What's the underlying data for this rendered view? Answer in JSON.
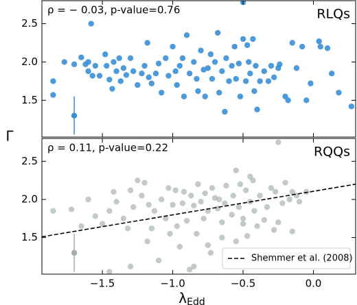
{
  "chart_data": [
    {
      "type": "scatter",
      "ylabel": "Γ",
      "annotations": [
        {
          "text": "ρ = − 0.03, p-value=0.76",
          "color": "#3a8fd6",
          "loc": "upper left"
        },
        {
          "text": "RLQs",
          "color": "#3a8fd6",
          "loc": "upper right"
        }
      ],
      "xlim": [
        -1.93,
        0.3
      ],
      "ylim": [
        1.02,
        2.8
      ],
      "xticks": [
        {
          "value": -1.5,
          "label": "−1.5"
        },
        {
          "value": -1.0,
          "label": "−1.0"
        },
        {
          "value": -0.5,
          "label": "−0.5"
        },
        {
          "value": 0.0,
          "label": "0.0"
        }
      ],
      "show_xticklabels": false,
      "yticks": [
        1.5,
        {
          "value": 2.0,
          "label": "2.0"
        },
        2.5
      ],
      "series": [
        {
          "color": "#3a8fd6",
          "opacity": 0.9,
          "x": [
            -1.85,
            -1.85,
            -1.7,
            -1.65,
            -1.62,
            -1.6,
            -1.58,
            -1.57,
            -1.55,
            -1.52,
            -1.48,
            -1.47,
            -1.45,
            -1.43,
            -1.42,
            -1.4,
            -1.38,
            -1.37,
            -1.35,
            -1.33,
            -1.3,
            -1.28,
            -1.25,
            -1.22,
            -1.2,
            -1.18,
            -1.17,
            -1.15,
            -1.12,
            -1.1,
            -1.08,
            -1.05,
            -1.03,
            -1.0,
            -0.98,
            -0.97,
            -0.95,
            -0.93,
            -0.92,
            -0.9,
            -0.88,
            -0.85,
            -0.83,
            -0.82,
            -0.8,
            -0.78,
            -0.77,
            -0.75,
            -0.73,
            -0.72,
            -0.7,
            -0.68,
            -0.67,
            -0.65,
            -0.63,
            -0.62,
            -0.6,
            -0.58,
            -0.56,
            -0.55,
            -0.53,
            -0.52,
            -0.5,
            -0.5,
            -0.48,
            -0.47,
            -0.46,
            -0.45,
            -0.43,
            -0.42,
            -0.41,
            -0.4,
            -0.38,
            -0.35,
            -0.32,
            -0.3,
            -0.28,
            -0.25,
            -0.24,
            -0.2,
            -0.18,
            -0.12,
            -0.08,
            -0.05,
            -0.02,
            0.05,
            0.1,
            0.13,
            0.18,
            0.27,
            -1.77,
            -1.6,
            -0.15,
            0.04
          ],
          "values": [
            1.75,
            1.57,
            1.97,
            2.06,
            1.97,
            2.0,
            2.5,
            1.82,
            1.95,
            1.82,
            2.1,
            1.95,
            1.77,
            1.65,
            2.0,
            1.88,
            2.05,
            1.75,
            1.92,
            1.83,
            2.05,
            1.88,
            1.7,
            1.85,
            1.95,
            2.25,
            1.8,
            1.72,
            1.85,
            1.98,
            1.6,
            2.05,
            1.82,
            2.2,
            1.88,
            1.7,
            1.95,
            2.05,
            1.55,
            2.35,
            1.85,
            2.0,
            1.78,
            1.62,
            2.15,
            1.9,
            1.55,
            1.92,
            2.1,
            1.78,
            2.0,
            2.38,
            1.6,
            1.88,
            1.35,
            2.05,
            1.75,
            1.95,
            2.2,
            1.78,
            1.98,
            1.55,
            2.78,
            2.3,
            1.75,
            2.22,
            2.0,
            1.85,
            2.3,
            1.62,
            1.95,
            1.38,
            1.75,
            1.88,
            1.75,
            1.95,
            1.8,
            1.92,
            1.97,
            1.55,
            1.5,
            1.92,
            2.2,
            1.5,
            1.72,
            2.2,
            2.18,
            1.85,
            1.6,
            1.42,
            2.0,
            1.88,
            2.25,
            2.27
          ]
        },
        {
          "color": "#3a8fd6",
          "opacity": 1,
          "x": [
            -1.7
          ],
          "values": [
            1.3
          ],
          "errors": [
            0.25
          ]
        }
      ]
    },
    {
      "type": "scatter",
      "xlabel": "λ",
      "xlabel_sub": "Edd",
      "legend": "lower right",
      "annotations": [
        {
          "text": "ρ = 0.11, p-value=0.22",
          "color": "#3b4346",
          "loc": "upper left"
        },
        {
          "text": "RQQs",
          "color": "#5b6669",
          "loc": "upper right"
        }
      ],
      "xlim": [
        -1.93,
        0.3
      ],
      "ylim": [
        1.02,
        2.8
      ],
      "xticks": [
        {
          "value": -1.5,
          "label": "−1.5"
        },
        {
          "value": -1.0,
          "label": "−1.0"
        },
        {
          "value": -0.5,
          "label": "−0.5"
        },
        {
          "value": 0.0,
          "label": "0.0"
        }
      ],
      "show_xticklabels": true,
      "yticks": [
        1.5,
        {
          "value": 2.0,
          "label": "2.0"
        },
        2.5
      ],
      "series": [
        {
          "color": "#9aa6a2",
          "opacity": 0.6,
          "x": [
            -1.85,
            -1.72,
            -1.65,
            -1.6,
            -1.55,
            -1.5,
            -1.45,
            -1.42,
            -1.4,
            -1.35,
            -1.32,
            -1.3,
            -1.28,
            -1.25,
            -1.22,
            -1.2,
            -1.18,
            -1.17,
            -1.15,
            -1.13,
            -1.1,
            -1.08,
            -1.05,
            -1.03,
            -1.02,
            -1.0,
            -0.98,
            -0.97,
            -0.95,
            -0.93,
            -0.92,
            -0.9,
            -0.88,
            -0.87,
            -0.85,
            -0.83,
            -0.82,
            -0.8,
            -0.78,
            -0.77,
            -0.75,
            -0.73,
            -0.72,
            -0.7,
            -0.68,
            -0.67,
            -0.65,
            -0.63,
            -0.62,
            -0.6,
            -0.58,
            -0.57,
            -0.55,
            -0.53,
            -0.52,
            -0.5,
            -0.48,
            -0.47,
            -0.45,
            -0.43,
            -0.42,
            -0.4,
            -0.38,
            -0.35,
            -0.33,
            -0.3,
            -0.28,
            -0.27,
            -0.25,
            -0.22,
            -0.2,
            -0.17,
            -0.15,
            -0.12,
            -0.1,
            -0.05,
            -0.25,
            -1.45,
            -1.3,
            -0.45,
            -0.5,
            -0.55,
            -0.65,
            -0.75,
            -0.85,
            -0.15
          ],
          "values": [
            1.85,
            1.87,
            1.65,
            2.0,
            1.78,
            1.68,
            1.85,
            2.1,
            1.97,
            1.75,
            1.62,
            2.12,
            1.9,
            2.25,
            2.05,
            2.22,
            1.45,
            1.93,
            1.62,
            1.85,
            1.2,
            2.0,
            1.75,
            2.15,
            1.55,
            1.93,
            2.12,
            1.65,
            1.38,
            1.95,
            2.1,
            1.72,
            1.08,
            2.05,
            1.92,
            1.55,
            2.2,
            1.97,
            1.75,
            2.08,
            1.85,
            1.3,
            2.15,
            2.02,
            1.88,
            2.0,
            1.7,
            1.95,
            2.18,
            1.15,
            1.8,
            2.05,
            2.38,
            1.9,
            2.2,
            1.75,
            2.12,
            1.52,
            1.97,
            2.25,
            1.85,
            1.65,
            2.05,
            1.73,
            1.9,
            2.15,
            1.6,
            2.1,
            1.7,
            1.95,
            2.22,
            2.0,
            2.1,
            2.05,
            1.97,
            2.1,
            2.75,
            1.05,
            1.12,
            2.3,
            1.68,
            1.45,
            1.5,
            1.4,
            1.12,
            1.58
          ]
        },
        {
          "color": "#a4aeab",
          "opacity": 1,
          "x": [
            -1.7
          ],
          "values": [
            1.3
          ],
          "errors": [
            0.25
          ]
        },
        {
          "name": "Shemmer et al. (2008)",
          "kind": "line",
          "linestyle": "dashed",
          "color": "#000000",
          "x": [
            -1.93,
            0.3
          ],
          "values": [
            1.51,
            2.2
          ]
        }
      ]
    }
  ]
}
